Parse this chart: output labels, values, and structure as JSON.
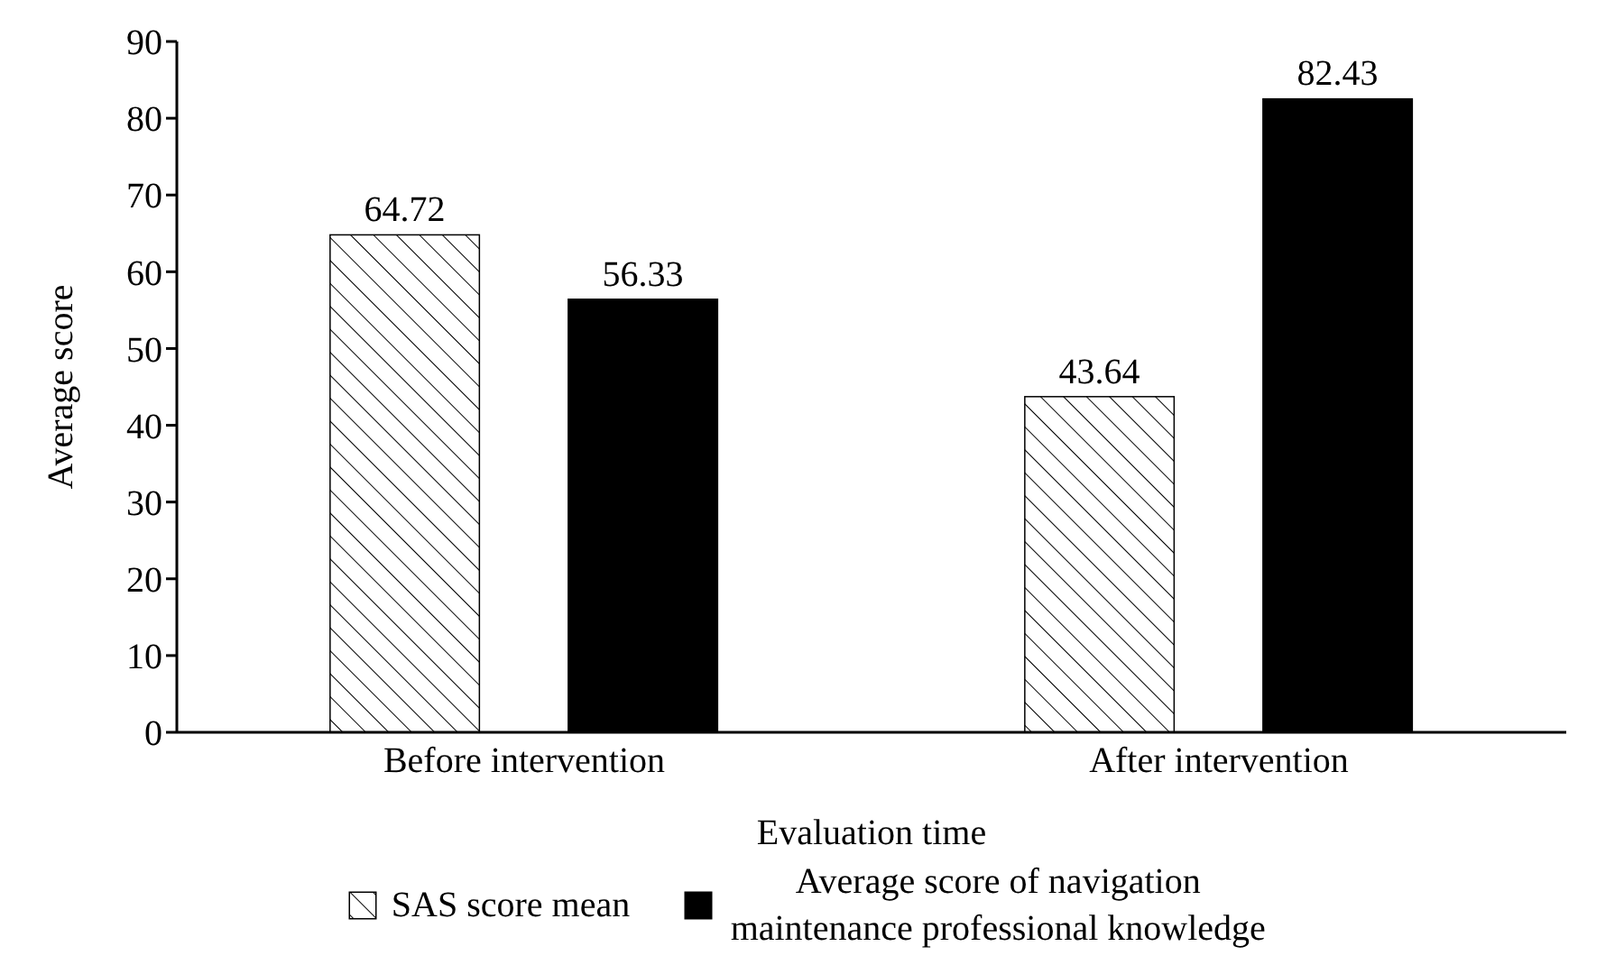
{
  "chart_data": {
    "type": "bar",
    "xlabel": "Evaluation time",
    "ylabel": "Average score",
    "categories": [
      "Before intervention",
      "After intervention"
    ],
    "series": [
      {
        "name": "SAS score mean",
        "color": "#ffffff",
        "values": [
          64.72,
          43.64
        ]
      },
      {
        "name": "Average score of navigation maintenance professional knowledge",
        "color": "#000000",
        "values": [
          56.33,
          82.43
        ]
      }
    ],
    "ylim": [
      0,
      90
    ],
    "yticks": [
      0,
      10,
      20,
      30,
      40,
      50,
      60,
      70,
      80,
      90
    ],
    "grid": false,
    "legend": "bottom",
    "data_labels": true
  }
}
